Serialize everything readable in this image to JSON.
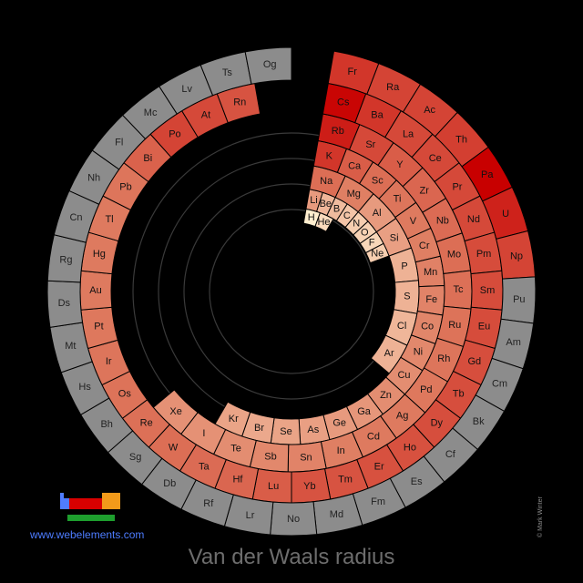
{
  "caption": "Van der Waals radius",
  "site_link": "www.webelements.com",
  "copyright": "© Mark Winter",
  "colors": {
    "background": "#000000",
    "no_data": "#8c8c8c",
    "low": "#ffeecf",
    "mid": "#de7a5f",
    "high": "#c80000",
    "guide_rings": "#3a3a3a",
    "link": "#4d7cff"
  },
  "chart_data": {
    "type": "heatmap",
    "title": "Van der Waals radius",
    "layout": "spiral periodic table",
    "color_scale": "value intensity (light cream = small, dark red = large, gray = no data)",
    "elements": [
      {
        "symbol": "H",
        "value": 0.0
      },
      {
        "symbol": "He",
        "value": 0.08
      },
      {
        "symbol": "Li",
        "value": 0.36
      },
      {
        "symbol": "Be",
        "value": 0.24
      },
      {
        "symbol": "B",
        "value": 0.22
      },
      {
        "symbol": "C",
        "value": 0.18
      },
      {
        "symbol": "N",
        "value": 0.14
      },
      {
        "symbol": "O",
        "value": 0.12
      },
      {
        "symbol": "F",
        "value": 0.1
      },
      {
        "symbol": "Ne",
        "value": 0.14
      },
      {
        "symbol": "Na",
        "value": 0.55
      },
      {
        "symbol": "Mg",
        "value": 0.48
      },
      {
        "symbol": "Al",
        "value": 0.36
      },
      {
        "symbol": "Si",
        "value": 0.34
      },
      {
        "symbol": "P",
        "value": 0.26
      },
      {
        "symbol": "S",
        "value": 0.26
      },
      {
        "symbol": "Cl",
        "value": 0.24
      },
      {
        "symbol": "Ar",
        "value": 0.26
      },
      {
        "symbol": "K",
        "value": 0.78
      },
      {
        "symbol": "Ca",
        "value": 0.62
      },
      {
        "symbol": "Sc",
        "value": 0.55
      },
      {
        "symbol": "Ti",
        "value": 0.52
      },
      {
        "symbol": "V",
        "value": 0.5
      },
      {
        "symbol": "Cr",
        "value": 0.48
      },
      {
        "symbol": "Mn",
        "value": 0.47
      },
      {
        "symbol": "Fe",
        "value": 0.46
      },
      {
        "symbol": "Co",
        "value": 0.45
      },
      {
        "symbol": "Ni",
        "value": 0.44
      },
      {
        "symbol": "Cu",
        "value": 0.42
      },
      {
        "symbol": "Zn",
        "value": 0.42
      },
      {
        "symbol": "Ga",
        "value": 0.38
      },
      {
        "symbol": "Ge",
        "value": 0.36
      },
      {
        "symbol": "As",
        "value": 0.34
      },
      {
        "symbol": "Se",
        "value": 0.32
      },
      {
        "symbol": "Br",
        "value": 0.3
      },
      {
        "symbol": "Kr",
        "value": 0.32
      },
      {
        "symbol": "Rb",
        "value": 0.88
      },
      {
        "symbol": "Sr",
        "value": 0.7
      },
      {
        "symbol": "Y",
        "value": 0.62
      },
      {
        "symbol": "Zr",
        "value": 0.58
      },
      {
        "symbol": "Nb",
        "value": 0.56
      },
      {
        "symbol": "Mo",
        "value": 0.55
      },
      {
        "symbol": "Tc",
        "value": 0.54
      },
      {
        "symbol": "Ru",
        "value": 0.53
      },
      {
        "symbol": "Rh",
        "value": 0.52
      },
      {
        "symbol": "Pd",
        "value": 0.51
      },
      {
        "symbol": "Ag",
        "value": 0.5
      },
      {
        "symbol": "Cd",
        "value": 0.5
      },
      {
        "symbol": "In",
        "value": 0.48
      },
      {
        "symbol": "Sn",
        "value": 0.46
      },
      {
        "symbol": "Sb",
        "value": 0.44
      },
      {
        "symbol": "Te",
        "value": 0.42
      },
      {
        "symbol": "I",
        "value": 0.4
      },
      {
        "symbol": "Xe",
        "value": 0.4
      },
      {
        "symbol": "Cs",
        "value": 0.98
      },
      {
        "symbol": "Ba",
        "value": 0.78
      },
      {
        "symbol": "La",
        "value": 0.7
      },
      {
        "symbol": "Ce",
        "value": 0.7
      },
      {
        "symbol": "Pr",
        "value": 0.7
      },
      {
        "symbol": "Nd",
        "value": 0.7
      },
      {
        "symbol": "Pm",
        "value": 0.69
      },
      {
        "symbol": "Sm",
        "value": 0.69
      },
      {
        "symbol": "Eu",
        "value": 0.69
      },
      {
        "symbol": "Gd",
        "value": 0.68
      },
      {
        "symbol": "Tb",
        "value": 0.68
      },
      {
        "symbol": "Dy",
        "value": 0.68
      },
      {
        "symbol": "Ho",
        "value": 0.67
      },
      {
        "symbol": "Er",
        "value": 0.67
      },
      {
        "symbol": "Tm",
        "value": 0.66
      },
      {
        "symbol": "Yb",
        "value": 0.66
      },
      {
        "symbol": "Lu",
        "value": 0.62
      },
      {
        "symbol": "Hf",
        "value": 0.58
      },
      {
        "symbol": "Ta",
        "value": 0.56
      },
      {
        "symbol": "W",
        "value": 0.55
      },
      {
        "symbol": "Re",
        "value": 0.54
      },
      {
        "symbol": "Os",
        "value": 0.53
      },
      {
        "symbol": "Ir",
        "value": 0.52
      },
      {
        "symbol": "Pt",
        "value": 0.51
      },
      {
        "symbol": "Au",
        "value": 0.5
      },
      {
        "symbol": "Hg",
        "value": 0.5
      },
      {
        "symbol": "Tl",
        "value": 0.5
      },
      {
        "symbol": "Pb",
        "value": 0.52
      },
      {
        "symbol": "Bi",
        "value": 0.6
      },
      {
        "symbol": "Po",
        "value": 0.72
      },
      {
        "symbol": "At",
        "value": 0.7
      },
      {
        "symbol": "Rn",
        "value": 0.66
      },
      {
        "symbol": "Fr",
        "value": 0.78
      },
      {
        "symbol": "Ra",
        "value": 0.72
      },
      {
        "symbol": "Ac",
        "value": 0.72
      },
      {
        "symbol": "Th",
        "value": 0.74
      },
      {
        "symbol": "Pa",
        "value": 1.0
      },
      {
        "symbol": "U",
        "value": 0.86
      },
      {
        "symbol": "Np",
        "value": 0.72
      },
      {
        "symbol": "Pu",
        "value": null
      },
      {
        "symbol": "Am",
        "value": null
      },
      {
        "symbol": "Cm",
        "value": null
      },
      {
        "symbol": "Bk",
        "value": null
      },
      {
        "symbol": "Cf",
        "value": null
      },
      {
        "symbol": "Es",
        "value": null
      },
      {
        "symbol": "Fm",
        "value": null
      },
      {
        "symbol": "Md",
        "value": null
      },
      {
        "symbol": "No",
        "value": null
      },
      {
        "symbol": "Lr",
        "value": null
      },
      {
        "symbol": "Rf",
        "value": null
      },
      {
        "symbol": "Db",
        "value": null
      },
      {
        "symbol": "Sg",
        "value": null
      },
      {
        "symbol": "Bh",
        "value": null
      },
      {
        "symbol": "Hs",
        "value": null
      },
      {
        "symbol": "Mt",
        "value": null
      },
      {
        "symbol": "Ds",
        "value": null
      },
      {
        "symbol": "Rg",
        "value": null
      },
      {
        "symbol": "Cn",
        "value": null
      },
      {
        "symbol": "Nh",
        "value": null
      },
      {
        "symbol": "Fl",
        "value": null
      },
      {
        "symbol": "Mc",
        "value": null
      },
      {
        "symbol": "Lv",
        "value": null
      },
      {
        "symbol": "Ts",
        "value": null
      },
      {
        "symbol": "Og",
        "value": null
      }
    ]
  }
}
